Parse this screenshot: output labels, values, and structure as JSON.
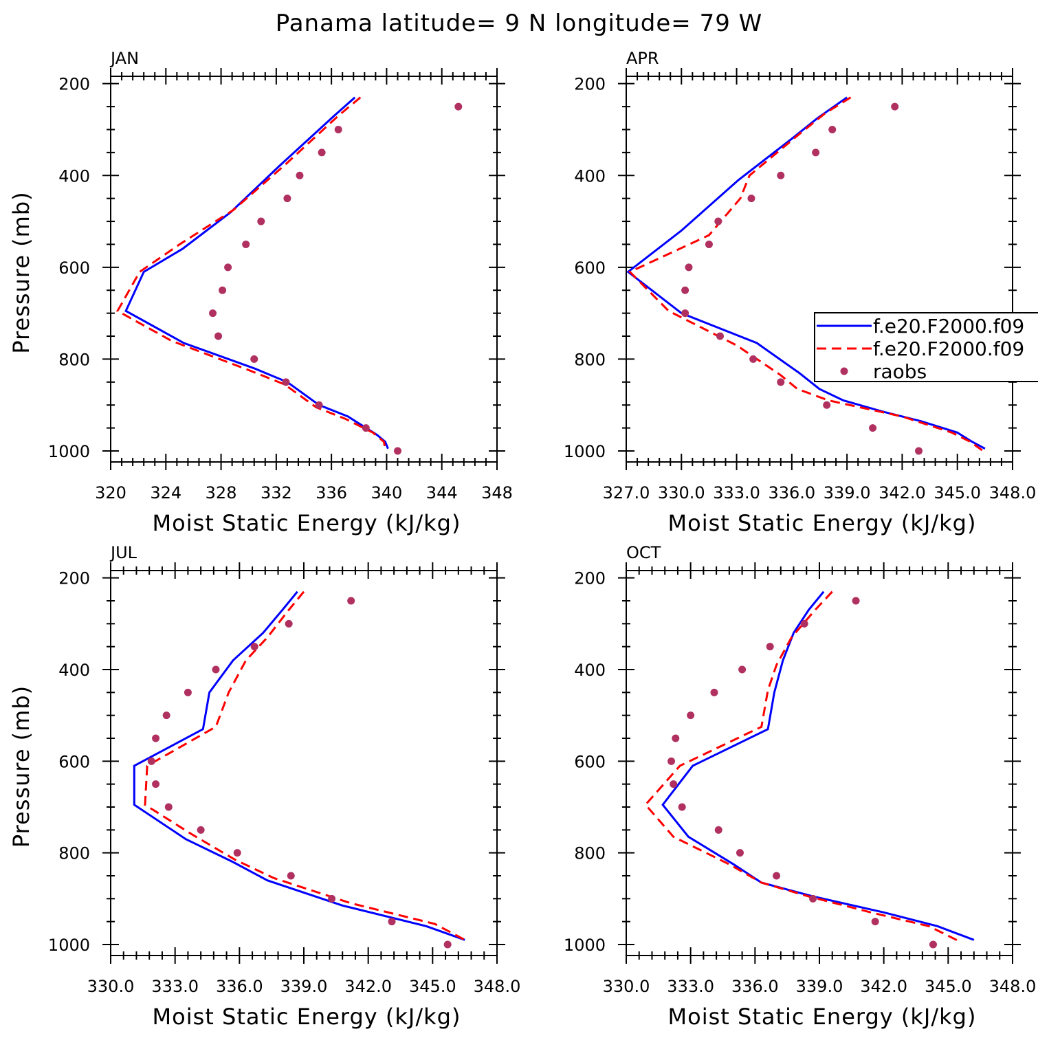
{
  "title": "Panama  latitude= 9 N longitude= 79 W",
  "colors": {
    "model1": "#0000ff",
    "model2": "#ff0000",
    "raobs": "#b03060",
    "axis": "#000000"
  },
  "legend": {
    "placement": "right-middle of APR panel (clipped at figure edge)",
    "entries": [
      {
        "label": "f.e20.F2000.f09",
        "style": "solid",
        "color": "#0000ff"
      },
      {
        "label": "f.e20.F2000.f09",
        "style": "dashed",
        "color": "#ff0000"
      },
      {
        "label": "raobs",
        "style": "dots",
        "color": "#b03060"
      }
    ]
  },
  "chart_data": [
    {
      "type": "line",
      "month": "JAN",
      "xlabel": "Moist Static Energy (kJ/kg)",
      "ylabel": "Pressure (mb)",
      "xlim": [
        320,
        348
      ],
      "ylim": [
        1000,
        200
      ],
      "xticks": [
        320,
        324,
        328,
        332,
        336,
        340,
        344,
        348
      ],
      "xtick_labels": [
        "320",
        "324",
        "328",
        "332",
        "336",
        "340",
        "344",
        "348"
      ],
      "yticks": [
        200,
        400,
        600,
        800,
        1000
      ],
      "ytick_labels": [
        "200",
        "400",
        "600",
        "800",
        "1000"
      ],
      "series": [
        {
          "name": "f.e20.F2000.f09 (solid)",
          "style": "solid",
          "color": "#0000ff",
          "x": [
            337.7,
            336.2,
            332.2,
            328.7,
            325.2,
            322.4,
            321.1,
            325.3,
            330.4,
            332.8,
            335.1,
            337.2,
            339.3,
            339.9,
            340.1
          ],
          "p": [
            230,
            270,
            380,
            480,
            560,
            610,
            695,
            765,
            820,
            850,
            900,
            925,
            965,
            980,
            995
          ]
        },
        {
          "name": "f.e20.F2000.f09 (dashed)",
          "style": "dashed",
          "color": "#ff0000",
          "x": [
            338.1,
            336.5,
            332.7,
            328.9,
            325.0,
            322.1,
            320.5,
            324.4,
            330.1,
            332.6,
            334.9,
            337.0,
            339.0,
            339.8,
            339.9
          ],
          "p": [
            230,
            270,
            375,
            475,
            550,
            610,
            695,
            760,
            825,
            855,
            905,
            930,
            960,
            980,
            995
          ]
        },
        {
          "name": "raobs",
          "style": "dots",
          "color": "#b03060",
          "x": [
            345.2,
            336.5,
            335.3,
            333.7,
            332.8,
            330.9,
            329.8,
            328.5,
            328.1,
            327.4,
            327.8,
            330.4,
            332.7,
            335.1,
            338.5,
            340.8
          ],
          "p": [
            250,
            300,
            350,
            400,
            450,
            500,
            550,
            600,
            650,
            700,
            750,
            800,
            850,
            900,
            950,
            1000
          ]
        }
      ]
    },
    {
      "type": "line",
      "month": "APR",
      "xlabel": "Moist Static Energy (kJ/kg)",
      "ylabel": "",
      "xlim": [
        327.0,
        348.0
      ],
      "ylim": [
        1000,
        200
      ],
      "xticks": [
        327,
        330,
        333,
        336,
        339,
        342,
        345,
        348
      ],
      "xtick_labels": [
        "327.0",
        "330.0",
        "333.0",
        "336.0",
        "339.0",
        "342.0",
        "345.0",
        "348.0"
      ],
      "yticks": [
        200,
        400,
        600,
        800,
        1000
      ],
      "ytick_labels": [
        "200",
        "400",
        "600",
        "800",
        "1000"
      ],
      "series": [
        {
          "name": "f.e20.F2000.f09 (solid)",
          "style": "solid",
          "color": "#0000ff",
          "x": [
            339.0,
            337.4,
            336.0,
            333.1,
            330.0,
            327.1,
            330.0,
            334.1,
            336.4,
            337.5,
            338.8,
            341.0,
            343.0,
            345.0,
            345.8,
            346.5
          ],
          "p": [
            230,
            275,
            320,
            410,
            520,
            610,
            700,
            765,
            830,
            865,
            890,
            915,
            935,
            960,
            980,
            995
          ]
        },
        {
          "name": "f.e20.F2000.f09 (dashed)",
          "style": "dashed",
          "color": "#ff0000",
          "x": [
            339.2,
            337.8,
            336.4,
            333.7,
            333.2,
            331.5,
            327.2,
            329.3,
            333.0,
            335.4,
            336.3,
            338.0,
            342.0,
            344.7,
            345.7,
            346.4
          ],
          "p": [
            230,
            265,
            310,
            400,
            450,
            530,
            610,
            695,
            770,
            835,
            865,
            890,
            925,
            960,
            980,
            1000
          ]
        },
        {
          "name": "raobs",
          "style": "dots",
          "color": "#b03060",
          "x": [
            341.6,
            338.2,
            337.3,
            335.4,
            333.8,
            332.0,
            331.5,
            330.4,
            330.2,
            330.2,
            332.1,
            333.9,
            335.4,
            337.9,
            340.4,
            342.9
          ],
          "p": [
            250,
            300,
            350,
            400,
            450,
            500,
            550,
            600,
            650,
            700,
            750,
            800,
            850,
            900,
            950,
            1000
          ]
        }
      ]
    },
    {
      "type": "line",
      "month": "JUL",
      "xlabel": "Moist Static Energy (kJ/kg)",
      "ylabel": "Pressure (mb)",
      "xlim": [
        330.0,
        348.0
      ],
      "ylim": [
        1000,
        200
      ],
      "xticks": [
        330,
        333,
        336,
        339,
        342,
        345,
        348
      ],
      "xtick_labels": [
        "330.0",
        "333.0",
        "336.0",
        "339.0",
        "342.0",
        "345.0",
        "348.0"
      ],
      "yticks": [
        200,
        400,
        600,
        800,
        1000
      ],
      "ytick_labels": [
        "200",
        "400",
        "600",
        "800",
        "1000"
      ],
      "series": [
        {
          "name": "f.e20.F2000.f09 (solid)",
          "style": "solid",
          "color": "#0000ff",
          "x": [
            338.7,
            338.0,
            337.1,
            335.7,
            334.6,
            334.3,
            331.1,
            331.1,
            333.5,
            335.7,
            337.3,
            340.8,
            344.7,
            346.5
          ],
          "p": [
            230,
            270,
            320,
            380,
            450,
            530,
            610,
            695,
            770,
            820,
            860,
            915,
            960,
            990
          ]
        },
        {
          "name": "f.e20.F2000.f09 (dashed)",
          "style": "dashed",
          "color": "#ff0000",
          "x": [
            339.0,
            338.3,
            337.3,
            336.3,
            335.5,
            334.9,
            331.7,
            331.6,
            333.8,
            335.8,
            337.6,
            341.2,
            345.1,
            346.5
          ],
          "p": [
            230,
            270,
            330,
            380,
            450,
            525,
            610,
            695,
            760,
            815,
            855,
            910,
            955,
            990
          ]
        },
        {
          "name": "raobs",
          "style": "dots",
          "color": "#b03060",
          "x": [
            341.2,
            338.3,
            336.7,
            334.9,
            333.6,
            332.6,
            332.1,
            331.9,
            332.1,
            332.7,
            334.2,
            335.9,
            338.4,
            340.3,
            343.1,
            345.7
          ],
          "p": [
            250,
            300,
            350,
            400,
            450,
            500,
            550,
            600,
            650,
            700,
            750,
            800,
            850,
            900,
            950,
            1000
          ]
        }
      ]
    },
    {
      "type": "line",
      "month": "OCT",
      "xlabel": "Moist Static Energy (kJ/kg)",
      "ylabel": "",
      "xlim": [
        330.0,
        348.0
      ],
      "ylim": [
        1000,
        200
      ],
      "xticks": [
        330,
        333,
        336,
        339,
        342,
        345,
        348
      ],
      "xtick_labels": [
        "330.0",
        "333.0",
        "336.0",
        "339.0",
        "342.0",
        "345.0",
        "348.0"
      ],
      "yticks": [
        200,
        400,
        600,
        800,
        1000
      ],
      "ytick_labels": [
        "200",
        "400",
        "600",
        "800",
        "1000"
      ],
      "series": [
        {
          "name": "f.e20.F2000.f09 (solid)",
          "style": "solid",
          "color": "#0000ff",
          "x": [
            339.2,
            338.5,
            337.8,
            337.3,
            336.9,
            336.6,
            333.1,
            331.7,
            332.9,
            335.0,
            336.3,
            338.7,
            342.0,
            344.5,
            346.2
          ],
          "p": [
            230,
            270,
            320,
            380,
            450,
            530,
            610,
            695,
            765,
            825,
            865,
            895,
            930,
            960,
            990
          ]
        },
        {
          "name": "f.e20.F2000.f09 (dashed)",
          "style": "dashed",
          "color": "#ff0000",
          "x": [
            339.6,
            338.8,
            337.7,
            337.0,
            336.6,
            336.3,
            332.5,
            330.9,
            332.2,
            334.8,
            336.3,
            338.5,
            341.4,
            344.1,
            345.6
          ],
          "p": [
            230,
            270,
            330,
            390,
            445,
            525,
            610,
            695,
            765,
            825,
            865,
            895,
            930,
            960,
            995
          ]
        },
        {
          "name": "raobs",
          "style": "dots",
          "color": "#b03060",
          "x": [
            340.7,
            338.3,
            336.7,
            335.4,
            334.1,
            333.0,
            332.3,
            332.1,
            332.2,
            332.6,
            334.3,
            335.3,
            337.0,
            338.7,
            341.6,
            344.3
          ],
          "p": [
            250,
            300,
            350,
            400,
            450,
            500,
            550,
            600,
            650,
            700,
            750,
            800,
            850,
            900,
            950,
            1000
          ]
        }
      ]
    }
  ]
}
